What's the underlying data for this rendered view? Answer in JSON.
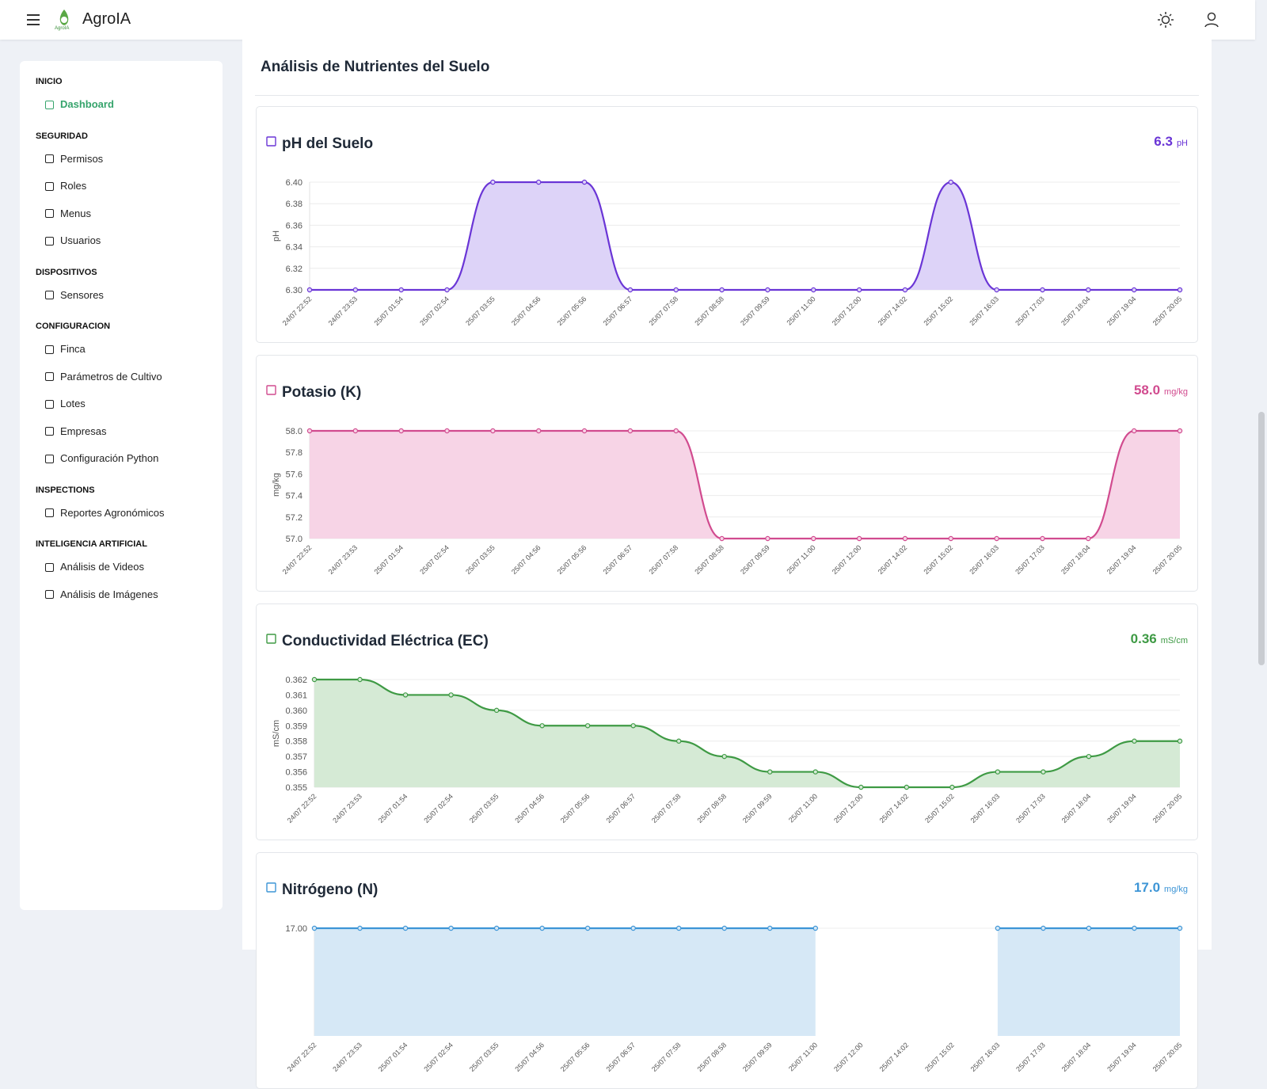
{
  "header": {
    "brand": "AgroIA",
    "logo_text": "AgroIA"
  },
  "sidebar": {
    "sections": [
      {
        "title": "INICIO",
        "items": [
          "Dashboard"
        ]
      },
      {
        "title": "SEGURIDAD",
        "items": [
          "Permisos",
          "Roles",
          "Menus",
          "Usuarios"
        ]
      },
      {
        "title": "DISPOSITIVOS",
        "items": [
          "Sensores"
        ]
      },
      {
        "title": "CONFIGURACION",
        "items": [
          "Finca",
          "Parámetros de Cultivo",
          "Lotes",
          "Empresas",
          "Configuración Python"
        ]
      },
      {
        "title": "INSPECTIONS",
        "items": [
          "Reportes Agronómicos"
        ]
      },
      {
        "title": "INTELIGENCIA ARTIFICIAL",
        "items": [
          "Análisis de Videos",
          "Análisis de Imágenes"
        ]
      }
    ]
  },
  "page_title": "Análisis de Nutrientes del Suelo",
  "chart_data": [
    {
      "type": "line",
      "title": "pH del Suelo",
      "current_value": 6.3,
      "unit": "pH",
      "y_label": "pH",
      "color": "#6a35d6",
      "fill": "#ddd3f8",
      "categories": [
        "24/07 22:52",
        "24/07 23:53",
        "25/07 01:54",
        "25/07 02:54",
        "25/07 03:55",
        "25/07 04:56",
        "25/07 05:56",
        "25/07 06:57",
        "25/07 07:58",
        "25/07 08:58",
        "25/07 09:59",
        "25/07 11:00",
        "25/07 12:00",
        "25/07 14:02",
        "25/07 15:02",
        "25/07 16:03",
        "25/07 17:03",
        "25/07 18:04",
        "25/07 19:04",
        "25/07 20:05"
      ],
      "values": [
        6.3,
        6.3,
        6.3,
        6.3,
        6.4,
        6.4,
        6.4,
        6.3,
        6.3,
        6.3,
        6.3,
        6.3,
        6.3,
        6.3,
        6.4,
        6.3,
        6.3,
        6.3,
        6.3,
        6.3
      ],
      "ylim": [
        6.3,
        6.4
      ],
      "yticks": [
        {
          "value": 6.3,
          "label": "6.30"
        },
        6.32,
        6.34,
        6.36,
        6.38,
        {
          "value": 6.4,
          "label": "6.40"
        }
      ],
      "grid": true
    },
    {
      "type": "line",
      "title": "Potasio (K)",
      "current_value": 58,
      "current_value_label": "58.0",
      "unit": "mg/kg",
      "y_label": "mg/kg",
      "color": "#d14b8f",
      "fill": "#f7d4e6",
      "categories": [
        "24/07 22:52",
        "24/07 23:53",
        "25/07 01:54",
        "25/07 02:54",
        "25/07 03:55",
        "25/07 04:56",
        "25/07 05:56",
        "25/07 06:57",
        "25/07 07:58",
        "25/07 08:58",
        "25/07 09:59",
        "25/07 11:00",
        "25/07 12:00",
        "25/07 14:02",
        "25/07 15:02",
        "25/07 16:03",
        "25/07 17:03",
        "25/07 18:04",
        "25/07 19:04",
        "25/07 20:05"
      ],
      "values": [
        58,
        58,
        58,
        58,
        58,
        58,
        58,
        58,
        58,
        57,
        57,
        57,
        57,
        57,
        57,
        57,
        57,
        57,
        58,
        58
      ],
      "ylim": [
        57,
        58
      ],
      "yticks": [
        {
          "value": 57,
          "label": "57.0"
        },
        57.2,
        57.4,
        57.6,
        57.8,
        {
          "value": 58,
          "label": "58.0"
        }
      ],
      "grid": true
    },
    {
      "type": "line",
      "title": "Conductividad Eléctrica (EC)",
      "current_value": 0.36,
      "unit": "mS/cm",
      "y_label": "mS/cm",
      "color": "#3e9a44",
      "fill": "#d5ead5",
      "categories": [
        "24/07 22:52",
        "24/07 23:53",
        "25/07 01:54",
        "25/07 02:54",
        "25/07 03:55",
        "25/07 04:56",
        "25/07 05:56",
        "25/07 06:57",
        "25/07 07:58",
        "25/07 08:58",
        "25/07 09:59",
        "25/07 11:00",
        "25/07 12:00",
        "25/07 14:02",
        "25/07 15:02",
        "25/07 16:03",
        "25/07 17:03",
        "25/07 18:04",
        "25/07 19:04",
        "25/07 20:05"
      ],
      "values": [
        0.362,
        0.362,
        0.361,
        0.361,
        0.36,
        0.359,
        0.359,
        0.359,
        0.358,
        0.357,
        0.356,
        0.356,
        0.355,
        0.355,
        0.355,
        0.356,
        0.356,
        0.357,
        0.358,
        0.358
      ],
      "ylim": [
        0.355,
        0.362
      ],
      "yticks": [
        0.355,
        0.356,
        0.357,
        0.358,
        0.359,
        {
          "value": 0.36,
          "label": "0.360"
        },
        0.361,
        0.362
      ],
      "grid": true
    },
    {
      "type": "line",
      "title": "Nitrógeno (N)",
      "current_value": 17,
      "current_value_label": "17.0",
      "unit": "mg/kg",
      "color": "#3d95d6",
      "fill": "#d6e8f6",
      "categories": [
        "24/07 22:52",
        "24/07 23:53",
        "25/07 01:54",
        "25/07 02:54",
        "25/07 03:55",
        "25/07 04:56",
        "25/07 05:56",
        "25/07 06:57",
        "25/07 07:58",
        "25/07 08:58",
        "25/07 09:59",
        "25/07 11:00",
        "25/07 12:00",
        "25/07 14:02",
        "25/07 15:02",
        "25/07 16:03",
        "25/07 17:03",
        "25/07 18:04",
        "25/07 19:04",
        "25/07 20:05"
      ],
      "values": [
        17,
        17,
        17,
        17,
        17,
        17,
        17,
        17,
        17,
        17,
        17,
        17,
        null,
        null,
        null,
        17,
        17,
        17,
        17,
        17
      ],
      "ylim": [
        16,
        17
      ],
      "yticks": [
        {
          "value": 17,
          "label": "17.00"
        }
      ],
      "grid": true
    }
  ]
}
